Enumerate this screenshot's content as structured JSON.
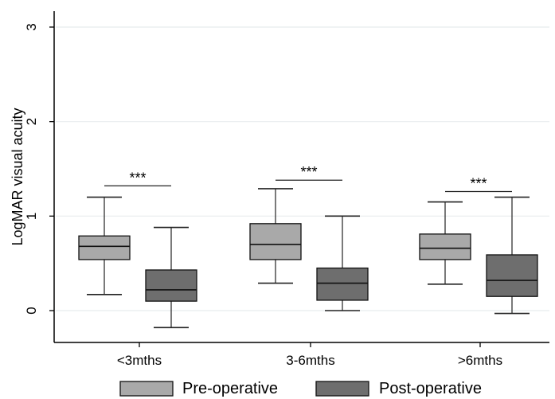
{
  "chart_data": {
    "type": "box",
    "title": "",
    "xlabel": "",
    "ylabel": "LogMAR visual acuity",
    "ylim": [
      -0.3,
      3.15
    ],
    "yticks": [
      "0",
      "1",
      "2",
      "3"
    ],
    "grid": "horizontal",
    "legend_position": "bottom",
    "categories": [
      "<3mths",
      "3-6mths",
      ">6mths"
    ],
    "series": [
      {
        "name": "Pre-operative",
        "color": "#a9a9a9",
        "boxes": [
          {
            "whisker_low": 0.17,
            "q1": 0.54,
            "median": 0.68,
            "q3": 0.79,
            "whisker_high": 1.2
          },
          {
            "whisker_low": 0.29,
            "q1": 0.54,
            "median": 0.7,
            "q3": 0.92,
            "whisker_high": 1.29
          },
          {
            "whisker_low": 0.28,
            "q1": 0.54,
            "median": 0.66,
            "q3": 0.81,
            "whisker_high": 1.15
          }
        ]
      },
      {
        "name": "Post-operative",
        "color": "#6e6e6e",
        "boxes": [
          {
            "whisker_low": -0.18,
            "q1": 0.1,
            "median": 0.22,
            "q3": 0.43,
            "whisker_high": 0.88
          },
          {
            "whisker_low": 0.0,
            "q1": 0.11,
            "median": 0.29,
            "q3": 0.45,
            "whisker_high": 1.0
          },
          {
            "whisker_low": -0.03,
            "q1": 0.15,
            "median": 0.32,
            "q3": 0.59,
            "whisker_high": 1.2
          }
        ]
      }
    ],
    "annotations": [
      {
        "text": "***",
        "category": "<3mths",
        "y": 1.32
      },
      {
        "text": "***",
        "category": "3-6mths",
        "y": 1.38
      },
      {
        "text": "***",
        "category": ">6mths",
        "y": 1.26
      }
    ]
  }
}
